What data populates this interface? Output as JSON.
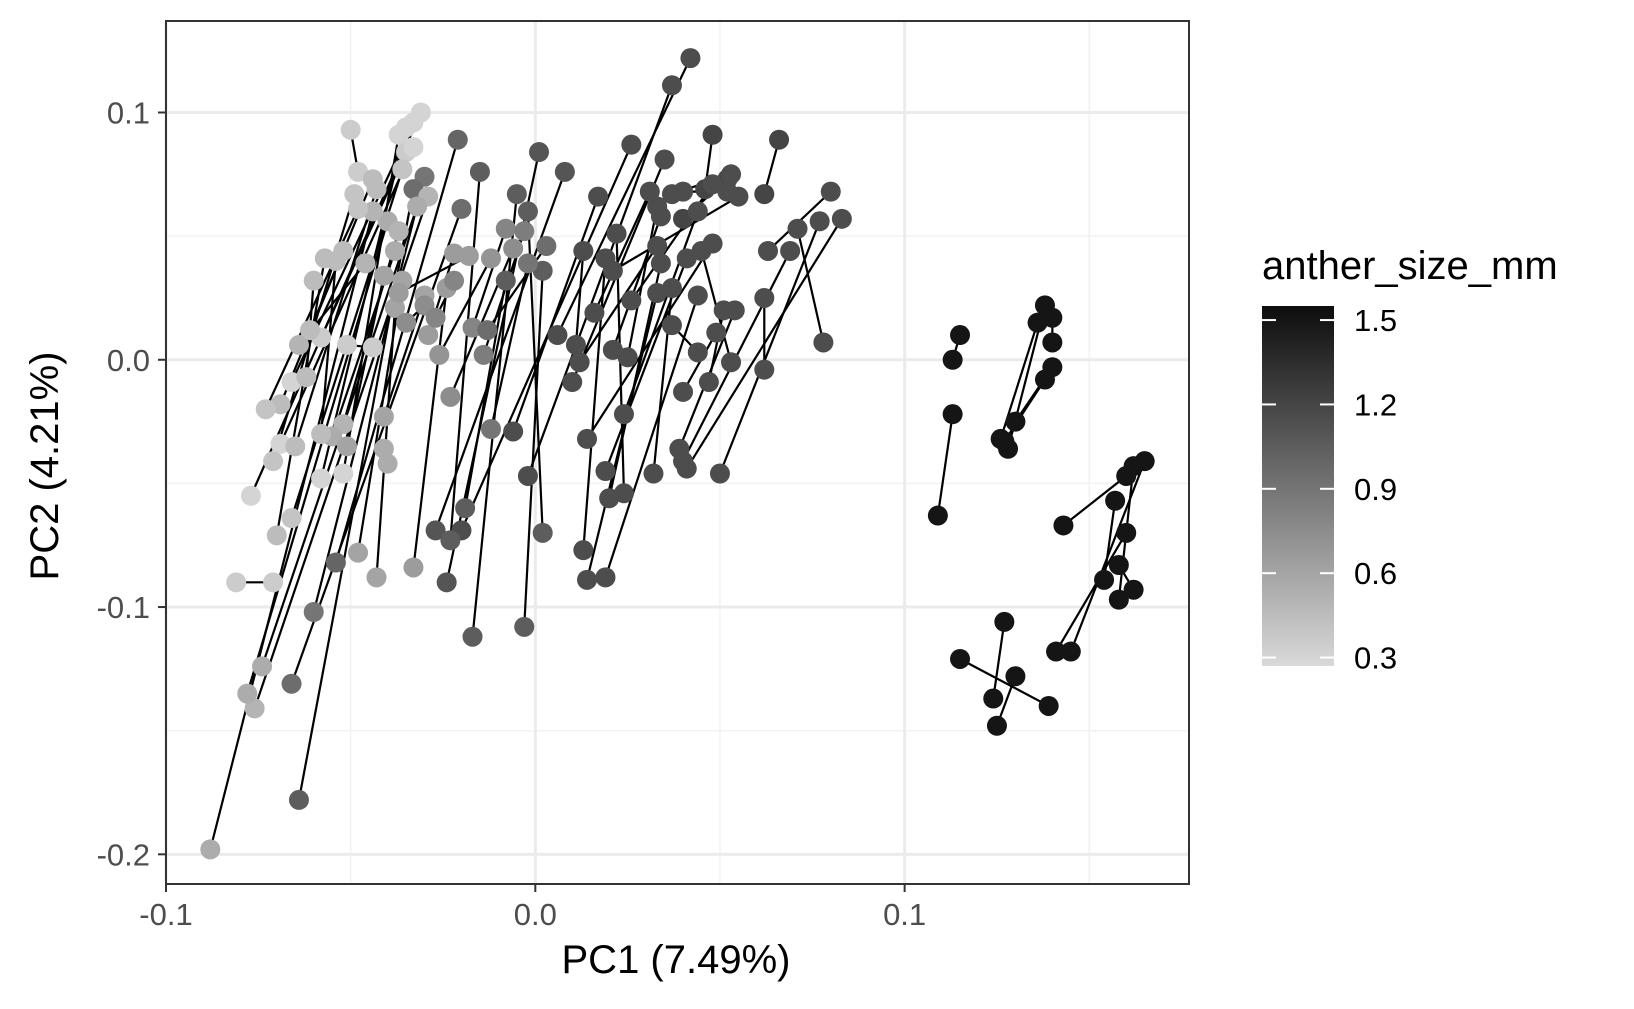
{
  "chart_data": {
    "type": "scatter",
    "xlabel": "PC1 (7.49%)",
    "ylabel": "PC2 (4.21%)",
    "xlim": [
      -0.1,
      0.177
    ],
    "ylim": [
      -0.212,
      0.137
    ],
    "x_ticks": [
      -0.1,
      0.0,
      0.1
    ],
    "x_tick_labels": [
      "-0.1",
      "0.0",
      "0.1"
    ],
    "y_ticks": [
      -0.2,
      -0.1,
      0.0,
      0.1
    ],
    "y_tick_labels": [
      "-0.2",
      "-0.1",
      "0.0",
      "0.1"
    ],
    "grid": true,
    "legend": {
      "title": "anther_size_mm",
      "placement": "right",
      "type": "colorbar",
      "breaks": [
        0.3,
        0.6,
        0.9,
        1.2,
        1.5
      ],
      "break_labels": [
        "0.3",
        "0.6",
        "0.9",
        "1.2",
        "1.5"
      ],
      "range": [
        0.27,
        1.55
      ],
      "low_color": "#d9d9d9",
      "high_color": "#0d0d0d"
    },
    "connector_color": "#000000",
    "pairs": [
      [
        [
          0.042,
          0.122,
          1.15
        ],
        [
          0.006,
          0.01,
          1.15
        ]
      ],
      [
        [
          0.037,
          0.111,
          1.15
        ],
        [
          -0.002,
          -0.047,
          1.15
        ]
      ],
      [
        [
          0.026,
          0.087,
          1.15
        ],
        [
          -0.02,
          -0.069,
          1.15
        ]
      ],
      [
        [
          0.035,
          0.081,
          1.15
        ],
        [
          0.01,
          -0.009,
          1.15
        ]
      ],
      [
        [
          0.048,
          0.091,
          1.2
        ],
        [
          0.046,
          0.069,
          1.2
        ]
      ],
      [
        [
          0.066,
          0.089,
          1.2
        ],
        [
          0.062,
          0.067,
          1.2
        ]
      ],
      [
        [
          0.052,
          0.073,
          1.2
        ],
        [
          0.04,
          0.057,
          1.2
        ]
      ],
      [
        [
          0.08,
          0.068,
          1.15
        ],
        [
          0.063,
          0.044,
          1.15
        ]
      ],
      [
        [
          0.083,
          0.057,
          1.15
        ],
        [
          0.041,
          -0.044,
          1.15
        ]
      ],
      [
        [
          0.077,
          0.056,
          1.15
        ],
        [
          0.05,
          -0.046,
          1.15
        ]
      ],
      [
        [
          0.071,
          0.053,
          1.15
        ],
        [
          0.078,
          0.007,
          1.15
        ]
      ],
      [
        [
          0.069,
          0.044,
          1.15
        ],
        [
          0.04,
          -0.041,
          1.15
        ]
      ],
      [
        [
          0.055,
          0.066,
          1.15
        ],
        [
          0.021,
          0.036,
          1.15
        ]
      ],
      [
        [
          0.048,
          0.047,
          1.15
        ],
        [
          0.014,
          -0.032,
          1.15
        ]
      ],
      [
        [
          0.041,
          0.041,
          1.15
        ],
        [
          0.019,
          -0.045,
          1.15
        ]
      ],
      [
        [
          0.034,
          0.039,
          1.15
        ],
        [
          0.02,
          -0.056,
          1.15
        ]
      ],
      [
        [
          0.044,
          0.026,
          1.15
        ],
        [
          0.019,
          -0.088,
          1.15
        ]
      ],
      [
        [
          0.033,
          0.027,
          1.15
        ],
        [
          0.014,
          -0.089,
          1.15
        ]
      ],
      [
        [
          0.022,
          0.051,
          1.15
        ],
        [
          0.024,
          -0.054,
          1.15
        ]
      ],
      [
        [
          0.054,
          0.02,
          1.15
        ],
        [
          0.039,
          -0.036,
          1.15
        ]
      ],
      [
        [
          0.049,
          0.011,
          1.15
        ],
        [
          0.04,
          -0.013,
          1.15
        ]
      ],
      [
        [
          0.044,
          0.06,
          1.15
        ],
        [
          0.024,
          -0.022,
          1.15
        ]
      ],
      [
        [
          0.033,
          0.062,
          1.15
        ],
        [
          0.025,
          0.001,
          1.15
        ]
      ],
      [
        [
          0.019,
          0.041,
          1.15
        ],
        [
          0.013,
          -0.077,
          1.15
        ]
      ],
      [
        [
          0.037,
          0.029,
          1.15
        ],
        [
          0.032,
          -0.046,
          1.15
        ]
      ],
      [
        [
          0.017,
          0.066,
          1.15
        ],
        [
          -0.006,
          -0.029,
          1.15
        ]
      ],
      [
        [
          0.033,
          0.046,
          1.15
        ],
        [
          0.012,
          -0.001,
          1.15
        ]
      ],
      [
        [
          0.008,
          0.076,
          1.1
        ],
        [
          -0.027,
          -0.069,
          1.1
        ]
      ],
      [
        [
          0.001,
          0.084,
          1.1
        ],
        [
          -0.024,
          -0.09,
          1.1
        ]
      ],
      [
        [
          -0.015,
          0.076,
          1.05
        ],
        [
          -0.023,
          -0.073,
          1.05
        ]
      ],
      [
        [
          -0.005,
          0.067,
          1.05
        ],
        [
          -0.017,
          -0.112,
          1.05
        ]
      ],
      [
        [
          -0.002,
          0.06,
          1.05
        ],
        [
          0.002,
          -0.07,
          1.05
        ]
      ],
      [
        [
          0.002,
          0.036,
          1.05
        ],
        [
          -0.003,
          -0.108,
          1.05
        ]
      ],
      [
        [
          -0.008,
          0.032,
          1.05
        ],
        [
          -0.019,
          -0.06,
          1.05
        ]
      ],
      [
        [
          -0.021,
          0.089,
          1.0
        ],
        [
          -0.054,
          -0.082,
          1.0
        ]
      ],
      [
        [
          -0.03,
          0.074,
          0.9
        ],
        [
          -0.06,
          -0.102,
          0.9
        ]
      ],
      [
        [
          -0.02,
          0.061,
          0.95
        ],
        [
          -0.066,
          -0.131,
          0.95
        ]
      ],
      [
        [
          -0.033,
          0.069,
          0.95
        ],
        [
          -0.064,
          -0.178,
          1.05
        ]
      ],
      [
        [
          -0.031,
          0.1,
          0.3
        ],
        [
          -0.077,
          -0.055,
          0.3
        ]
      ],
      [
        [
          -0.033,
          0.096,
          0.3
        ],
        [
          -0.066,
          -0.009,
          0.3
        ]
      ],
      [
        [
          -0.035,
          0.094,
          0.3
        ],
        [
          -0.058,
          -0.048,
          0.3
        ]
      ],
      [
        [
          -0.037,
          0.091,
          0.3
        ],
        [
          -0.052,
          -0.046,
          0.3
        ]
      ],
      [
        [
          -0.035,
          0.084,
          0.35
        ],
        [
          -0.058,
          0.009,
          0.35
        ]
      ],
      [
        [
          -0.033,
          0.086,
          0.3
        ],
        [
          -0.069,
          -0.034,
          0.3
        ]
      ],
      [
        [
          -0.036,
          0.077,
          0.4
        ],
        [
          -0.066,
          -0.064,
          0.4
        ]
      ],
      [
        [
          -0.029,
          0.066,
          0.5
        ],
        [
          -0.076,
          -0.141,
          0.5
        ]
      ],
      [
        [
          -0.032,
          0.062,
          0.55
        ],
        [
          -0.074,
          -0.124,
          0.55
        ]
      ],
      [
        [
          -0.04,
          0.056,
          0.55
        ],
        [
          -0.078,
          -0.135,
          0.55
        ]
      ],
      [
        [
          -0.044,
          0.06,
          0.5
        ],
        [
          -0.088,
          -0.198,
          0.55
        ]
      ],
      [
        [
          -0.05,
          0.093,
          0.35
        ],
        [
          -0.048,
          0.076,
          0.35
        ]
      ],
      [
        [
          -0.044,
          0.073,
          0.45
        ],
        [
          -0.069,
          -0.018,
          0.45
        ]
      ],
      [
        [
          -0.043,
          0.069,
          0.45
        ],
        [
          -0.065,
          -0.035,
          0.45
        ]
      ],
      [
        [
          -0.049,
          0.067,
          0.4
        ],
        [
          -0.071,
          -0.041,
          0.4
        ]
      ],
      [
        [
          -0.048,
          0.061,
          0.4
        ],
        [
          -0.073,
          -0.02,
          0.4
        ]
      ],
      [
        [
          -0.037,
          0.052,
          0.5
        ],
        [
          -0.052,
          -0.026,
          0.5
        ]
      ],
      [
        [
          -0.038,
          0.044,
          0.55
        ],
        [
          -0.055,
          -0.031,
          0.55
        ]
      ],
      [
        [
          -0.046,
          0.039,
          0.5
        ],
        [
          -0.064,
          0.006,
          0.5
        ]
      ],
      [
        [
          -0.052,
          0.044,
          0.45
        ],
        [
          -0.061,
          0.012,
          0.45
        ]
      ],
      [
        [
          -0.057,
          0.041,
          0.45
        ],
        [
          -0.07,
          -0.071,
          0.45
        ]
      ],
      [
        [
          -0.06,
          0.032,
          0.45
        ],
        [
          -0.062,
          -0.007,
          0.45
        ]
      ],
      [
        [
          -0.054,
          0.04,
          0.45
        ],
        [
          -0.058,
          -0.03,
          0.45
        ]
      ],
      [
        [
          -0.041,
          0.034,
          0.6
        ],
        [
          -0.051,
          -0.035,
          0.6
        ]
      ],
      [
        [
          -0.036,
          0.032,
          0.6
        ],
        [
          -0.048,
          -0.078,
          0.6
        ]
      ],
      [
        [
          -0.038,
          0.021,
          0.6
        ],
        [
          -0.043,
          -0.088,
          0.6
        ]
      ],
      [
        [
          -0.03,
          0.026,
          0.6
        ],
        [
          -0.041,
          -0.023,
          0.6
        ]
      ],
      [
        [
          -0.024,
          0.029,
          0.65
        ],
        [
          -0.033,
          -0.084,
          0.65
        ]
      ],
      [
        [
          -0.022,
          0.043,
          0.65
        ],
        [
          -0.029,
          0.01,
          0.65
        ]
      ],
      [
        [
          -0.018,
          0.042,
          0.65
        ],
        [
          -0.037,
          0.027,
          0.65
        ]
      ],
      [
        [
          -0.012,
          0.041,
          0.7
        ],
        [
          -0.026,
          0.002,
          0.7
        ]
      ],
      [
        [
          -0.006,
          0.045,
          0.75
        ],
        [
          -0.023,
          -0.015,
          0.75
        ]
      ],
      [
        [
          -0.008,
          0.053,
          0.8
        ],
        [
          -0.017,
          0.013,
          0.8
        ]
      ],
      [
        [
          -0.003,
          0.052,
          0.85
        ],
        [
          -0.014,
          0.002,
          0.85
        ]
      ],
      [
        [
          -0.002,
          0.039,
          0.9
        ],
        [
          -0.012,
          -0.028,
          0.9
        ]
      ],
      [
        [
          0.003,
          0.046,
          0.95
        ],
        [
          -0.013,
          0.012,
          0.95
        ]
      ],
      [
        [
          -0.044,
          0.005,
          0.35
        ],
        [
          -0.051,
          0.006,
          0.35
        ]
      ],
      [
        [
          -0.081,
          -0.09,
          0.35
        ],
        [
          -0.071,
          -0.09,
          0.35
        ]
      ],
      [
        [
          -0.041,
          -0.036,
          0.55
        ],
        [
          -0.04,
          -0.042,
          0.55
        ]
      ],
      [
        [
          -0.035,
          0.015,
          0.75
        ],
        [
          -0.03,
          0.022,
          0.75
        ]
      ],
      [
        [
          -0.027,
          0.017,
          0.8
        ],
        [
          -0.022,
          0.032,
          0.8
        ]
      ],
      [
        [
          0.037,
          0.067,
          1.15
        ],
        [
          0.053,
          0.075,
          1.15
        ]
      ],
      [
        [
          0.04,
          0.068,
          1.15
        ],
        [
          0.052,
          0.068,
          1.15
        ]
      ],
      [
        [
          0.044,
          0.003,
          1.15
        ],
        [
          0.037,
          0.014,
          1.15
        ]
      ],
      [
        [
          0.047,
          -0.009,
          1.15
        ],
        [
          0.051,
          0.02,
          1.15
        ]
      ],
      [
        [
          0.053,
          -0.001,
          1.15
        ],
        [
          0.045,
          0.044,
          1.15
        ]
      ],
      [
        [
          0.062,
          -0.004,
          1.15
        ],
        [
          0.062,
          0.025,
          1.15
        ]
      ],
      [
        [
          0.011,
          0.006,
          1.15
        ],
        [
          0.013,
          0.044,
          1.15
        ]
      ],
      [
        [
          0.016,
          0.019,
          1.15
        ],
        [
          0.031,
          0.068,
          1.15
        ]
      ],
      [
        [
          0.021,
          0.004,
          1.15
        ],
        [
          0.034,
          0.058,
          1.15
        ]
      ],
      [
        [
          0.026,
          0.024,
          1.15
        ],
        [
          0.048,
          0.071,
          1.15
        ]
      ],
      [
        [
          0.109,
          -0.063,
          1.5
        ],
        [
          0.113,
          -0.022,
          1.5
        ]
      ],
      [
        [
          0.115,
          0.01,
          1.5
        ],
        [
          0.113,
          0.0,
          1.5
        ]
      ],
      [
        [
          0.126,
          -0.032,
          1.5
        ],
        [
          0.136,
          0.015,
          1.5
        ]
      ],
      [
        [
          0.128,
          -0.036,
          1.5
        ],
        [
          0.138,
          0.022,
          1.5
        ]
      ],
      [
        [
          0.13,
          -0.025,
          1.5
        ],
        [
          0.14,
          -0.003,
          1.5
        ]
      ],
      [
        [
          0.127,
          -0.033,
          1.5
        ],
        [
          0.138,
          -0.008,
          1.5
        ]
      ],
      [
        [
          0.14,
          0.017,
          1.5
        ],
        [
          0.14,
          0.007,
          1.5
        ]
      ],
      [
        [
          0.143,
          -0.067,
          1.5
        ],
        [
          0.16,
          -0.047,
          1.5
        ]
      ],
      [
        [
          0.145,
          -0.118,
          1.5
        ],
        [
          0.165,
          -0.041,
          1.5
        ]
      ],
      [
        [
          0.154,
          -0.089,
          1.5
        ],
        [
          0.157,
          -0.057,
          1.5
        ]
      ],
      [
        [
          0.158,
          -0.097,
          1.5
        ],
        [
          0.162,
          -0.043,
          1.5
        ]
      ],
      [
        [
          0.141,
          -0.118,
          1.5
        ],
        [
          0.16,
          -0.07,
          1.5
        ]
      ],
      [
        [
          0.158,
          -0.083,
          1.5
        ],
        [
          0.162,
          -0.093,
          1.5
        ]
      ],
      [
        [
          0.115,
          -0.121,
          1.5
        ],
        [
          0.139,
          -0.14,
          1.5
        ]
      ],
      [
        [
          0.124,
          -0.137,
          1.5
        ],
        [
          0.127,
          -0.106,
          1.5
        ]
      ],
      [
        [
          0.125,
          -0.148,
          1.5
        ],
        [
          0.13,
          -0.128,
          1.5
        ]
      ]
    ]
  }
}
